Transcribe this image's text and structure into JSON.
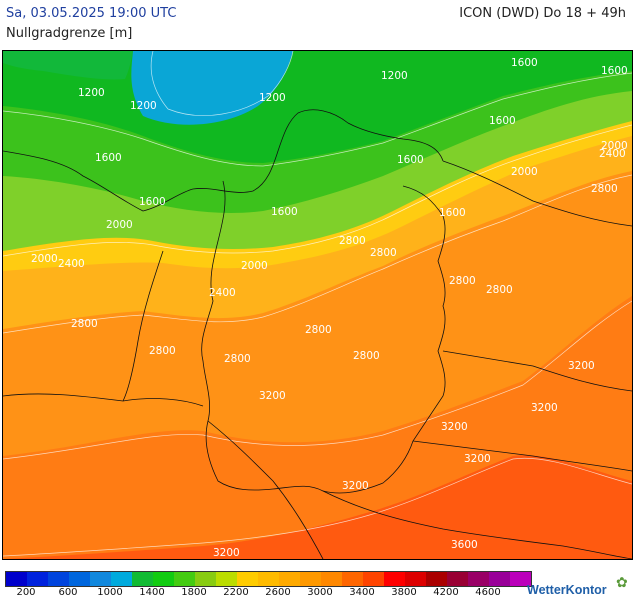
{
  "header": {
    "date_text": "Sa, 03.05.2025 19:00 UTC",
    "model_text": "ICON (DWD) Do 18 + 49h",
    "parameter_text": "Nullgradgrenze [m]"
  },
  "map": {
    "isoline_labels": [
      "1200",
      "1200",
      "1200",
      "1200",
      "1600",
      "1600",
      "1600",
      "1600",
      "1600",
      "1600",
      "1600",
      "1600",
      "2000",
      "2000",
      "2000",
      "2000",
      "2000",
      "2400",
      "2400",
      "2400",
      "2800",
      "2800",
      "2800",
      "2800",
      "2800",
      "2800",
      "2800",
      "2800",
      "2800",
      "2800",
      "3200",
      "3200",
      "3200",
      "3200",
      "3200",
      "3200",
      "3200",
      "3600"
    ]
  },
  "legend": {
    "colors": [
      "#0000cc",
      "#0022dd",
      "#0044dd",
      "#0066dd",
      "#1188dd",
      "#00aadd",
      "#11bb33",
      "#11cc11",
      "#44cc11",
      "#88cc11",
      "#bbdd00",
      "#ffcc00",
      "#ffbb00",
      "#ffaa00",
      "#ff9900",
      "#ff8800",
      "#ff6600",
      "#ff4400",
      "#ff0000",
      "#dd0000",
      "#aa0000",
      "#990033",
      "#990066",
      "#990099",
      "#bb00bb"
    ],
    "labels": [
      "200",
      "600",
      "1000",
      "1400",
      "1800",
      "2200",
      "2600",
      "3000",
      "3400",
      "3800",
      "4200",
      "4600"
    ]
  },
  "brand": {
    "name": "WetterKontor",
    "icon": "flower-icon"
  }
}
